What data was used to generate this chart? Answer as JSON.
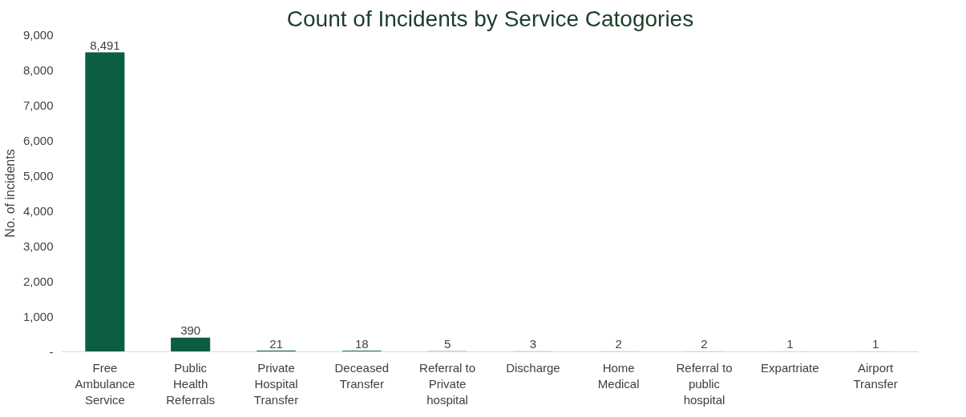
{
  "chart_data": {
    "type": "bar",
    "title": "Count of Incidents by Service Catogories",
    "ylabel": "No. of incidents",
    "categories": [
      "Free Ambulance Service",
      "Public Health Referrals",
      "Private Hospital Transfer",
      "Deceased Transfer",
      "Referral to Private hospital",
      "Discharge",
      "Home Medical",
      "Referral to public hospital",
      "Expartriate",
      "Airport Transfer"
    ],
    "values": [
      8491,
      390,
      21,
      18,
      5,
      3,
      2,
      2,
      1,
      1
    ],
    "value_labels": [
      "8,491",
      "390",
      "21",
      "18",
      "5",
      "3",
      "2",
      "2",
      "1",
      "1"
    ],
    "color": "#0b5e40",
    "ylim": [
      0,
      9000
    ],
    "yticks": [
      {
        "value": 0,
        "label": "-"
      },
      {
        "value": 1000,
        "label": "1,000"
      },
      {
        "value": 2000,
        "label": "2,000"
      },
      {
        "value": 3000,
        "label": "3,000"
      },
      {
        "value": 4000,
        "label": "4,000"
      },
      {
        "value": 5000,
        "label": "5,000"
      },
      {
        "value": 6000,
        "label": "6,000"
      },
      {
        "value": 7000,
        "label": "7,000"
      },
      {
        "value": 8000,
        "label": "8,000"
      },
      {
        "value": 9000,
        "label": "9,000"
      }
    ],
    "grid": false
  }
}
